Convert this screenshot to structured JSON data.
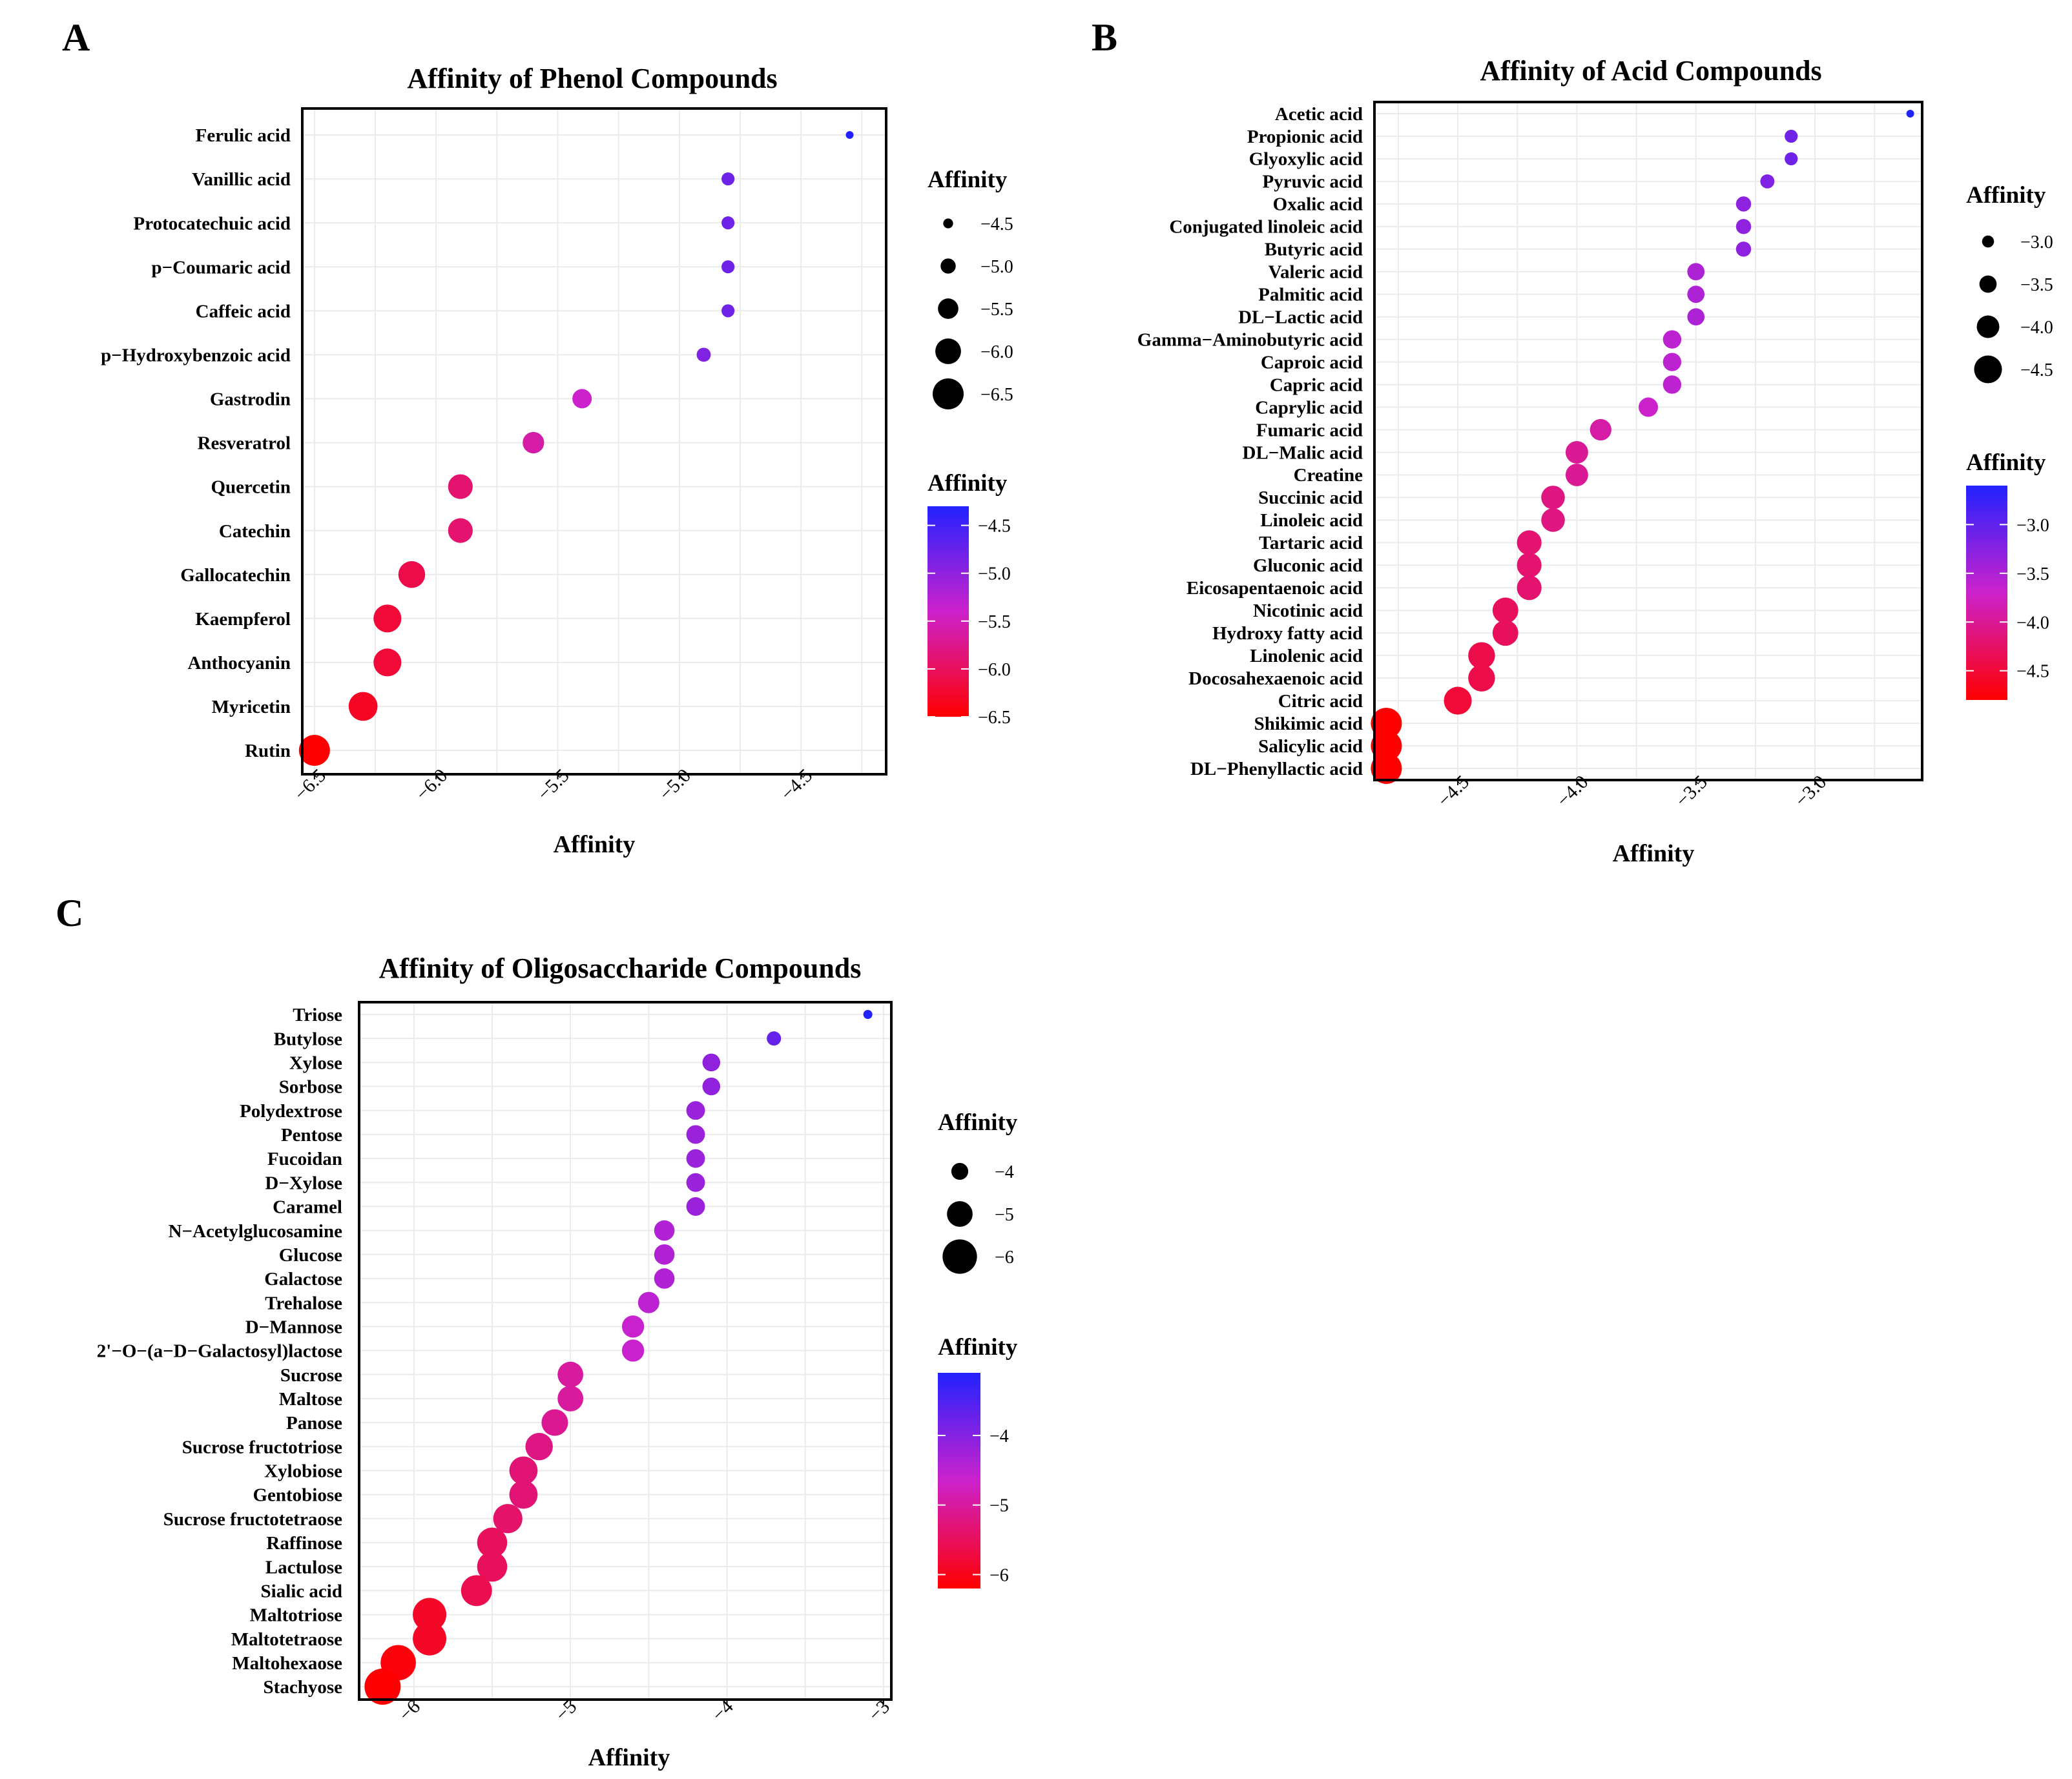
{
  "chart_data": [
    {
      "panel": "A",
      "type": "scatter",
      "title": "Affinity of Phenol Compounds",
      "xlabel": "Affinity",
      "ylabel": "",
      "xlim": [
        -6.55,
        -4.15
      ],
      "xticks": [
        -6.5,
        -6.0,
        -5.5,
        -5.0,
        -4.5
      ],
      "xtick_labels": [
        "−6.5",
        "−6.0",
        "−5.5",
        "−5.0",
        "−4.5"
      ],
      "grid": true,
      "categories": [
        "Ferulic acid",
        "Vanillic acid",
        "Protocatechuic acid",
        "p−Coumaric acid",
        "Caffeic acid",
        "p−Hydroxybenzoic acid",
        "Gastrodin",
        "Resveratrol",
        "Quercetin",
        "Catechin",
        "Gallocatechin",
        "Kaempferol",
        "Anthocyanin",
        "Myricetin",
        "Rutin"
      ],
      "values": [
        -4.3,
        -4.8,
        -4.8,
        -4.8,
        -4.8,
        -4.9,
        -5.4,
        -5.6,
        -5.9,
        -5.9,
        -6.1,
        -6.2,
        -6.2,
        -6.3,
        -6.5
      ],
      "size_legend": {
        "title": "Affinity",
        "values": [
          -4.5,
          -5.0,
          -5.5,
          -6.0,
          -6.5
        ],
        "labels": [
          "−4.5",
          "−5.0",
          "−5.5",
          "−6.0",
          "−6.5"
        ]
      },
      "color_legend": {
        "title": "Affinity",
        "range": [
          -6.5,
          -4.3
        ],
        "ticks": [
          -4.5,
          -5.0,
          -5.5,
          -6.0,
          -6.5
        ],
        "labels": [
          "−4.5",
          "−5.0",
          "−5.5",
          "−6.0",
          "−6.5"
        ],
        "low_color": "#ff0000",
        "mid_color": "#cc22cc",
        "high_color": "#2222ff"
      }
    },
    {
      "panel": "B",
      "type": "scatter",
      "title": "Affinity of Acid Compounds",
      "xlabel": "Affinity",
      "ylabel": "",
      "xlim": [
        -4.85,
        -2.55
      ],
      "xticks": [
        -4.5,
        -4.0,
        -3.5,
        -3.0
      ],
      "xtick_labels": [
        "−4.5",
        "−4.0",
        "−3.5",
        "−3.0"
      ],
      "grid": true,
      "categories": [
        "Acetic acid",
        "Propionic acid",
        "Glyoxylic acid",
        "Pyruvic acid",
        "Oxalic acid",
        "Conjugated linoleic acid",
        "Butyric acid",
        "Valeric acid",
        "Palmitic acid",
        "DL−Lactic acid",
        "Gamma−Aminobutyric acid",
        "Caproic acid",
        "Capric acid",
        "Caprylic acid",
        "Fumaric acid",
        "DL−Malic acid",
        "Creatine",
        "Succinic acid",
        "Linoleic acid",
        "Tartaric acid",
        "Gluconic acid",
        "Eicosapentaenoic acid",
        "Nicotinic acid",
        "Hydroxy fatty acid",
        "Linolenic acid",
        "Docosahexaenoic acid",
        "Citric acid",
        "Shikimic acid",
        "Salicylic acid",
        "DL−Phenyllactic acid"
      ],
      "values": [
        -2.6,
        -3.1,
        -3.1,
        -3.2,
        -3.3,
        -3.3,
        -3.3,
        -3.5,
        -3.5,
        -3.5,
        -3.6,
        -3.6,
        -3.6,
        -3.7,
        -3.9,
        -4.0,
        -4.0,
        -4.1,
        -4.1,
        -4.2,
        -4.2,
        -4.2,
        -4.3,
        -4.3,
        -4.4,
        -4.4,
        -4.5,
        -4.8,
        -4.8,
        -4.8
      ],
      "size_legend": {
        "title": "Affinity",
        "values": [
          -3.0,
          -3.5,
          -4.0,
          -4.5
        ],
        "labels": [
          "−3.0",
          "−3.5",
          "−4.0",
          "−4.5"
        ]
      },
      "color_legend": {
        "title": "Affinity",
        "range": [
          -4.8,
          -2.6
        ],
        "ticks": [
          -3.0,
          -3.5,
          -4.0,
          -4.5
        ],
        "labels": [
          "−3.0",
          "−3.5",
          "−4.0",
          "−4.5"
        ],
        "low_color": "#ff0000",
        "mid_color": "#cc22cc",
        "high_color": "#2222ff"
      }
    },
    {
      "panel": "C",
      "type": "scatter",
      "title": "Affinity of Oligosaccharide Compounds",
      "xlabel": "Affinity",
      "ylabel": "",
      "xlim": [
        -6.35,
        -2.95
      ],
      "xticks": [
        -6,
        -5,
        -4,
        -3
      ],
      "xtick_labels": [
        "−6",
        "−5",
        "−4",
        "−3"
      ],
      "grid": true,
      "categories": [
        "Triose",
        "Butylose",
        "Xylose",
        "Sorbose",
        "Polydextrose",
        "Pentose",
        "Fucoidan",
        "D−Xylose",
        "Caramel",
        "N−Acetylglucosamine",
        "Glucose",
        "Galactose",
        "Trehalose",
        "D−Mannose",
        "2'−O−(a−D−Galactosyl)lactose",
        "Sucrose",
        "Maltose",
        "Panose",
        "Sucrose fructotriose",
        "Xylobiose",
        "Gentobiose",
        "Sucrose fructotetraose",
        "Raffinose",
        "Lactulose",
        "Sialic acid",
        "Maltotriose",
        "Maltotetraose",
        "Maltohexaose",
        "Stachyose"
      ],
      "values": [
        -3.1,
        -3.7,
        -4.1,
        -4.1,
        -4.2,
        -4.2,
        -4.2,
        -4.2,
        -4.2,
        -4.4,
        -4.4,
        -4.4,
        -4.5,
        -4.6,
        -4.6,
        -5.0,
        -5.0,
        -5.1,
        -5.2,
        -5.3,
        -5.3,
        -5.4,
        -5.5,
        -5.5,
        -5.6,
        -5.9,
        -5.9,
        -6.1,
        -6.2
      ],
      "size_legend": {
        "title": "Affinity",
        "values": [
          -4,
          -5,
          -6
        ],
        "labels": [
          "−4",
          "−5",
          "−6"
        ]
      },
      "color_legend": {
        "title": "Affinity",
        "range": [
          -6.2,
          -3.1
        ],
        "ticks": [
          -4,
          -5,
          -6
        ],
        "labels": [
          "−4",
          "−5",
          "−6"
        ],
        "low_color": "#ff0000",
        "mid_color": "#cc22cc",
        "high_color": "#2222ff"
      }
    }
  ]
}
